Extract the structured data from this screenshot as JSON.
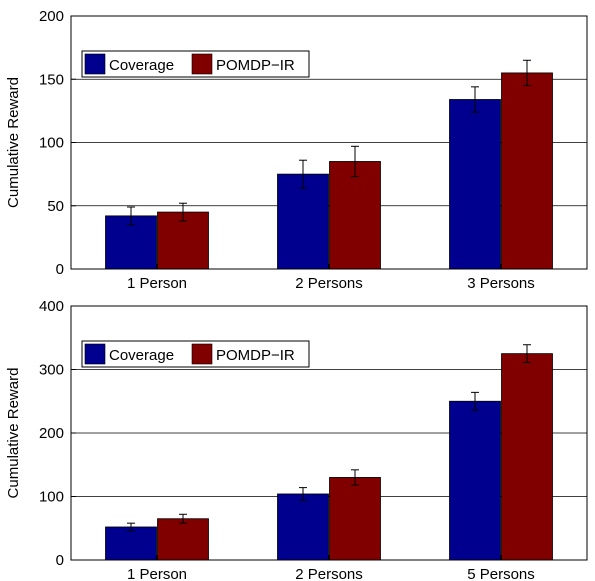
{
  "colors": {
    "coverage": "#00008f",
    "pomdp_ir": "#800000"
  },
  "chart_data": [
    {
      "type": "bar",
      "categories": [
        "1 Person",
        "2 Persons",
        "3 Persons"
      ],
      "series": [
        {
          "name": "Coverage",
          "values": [
            42,
            75,
            134
          ],
          "errors": [
            7,
            11,
            10
          ]
        },
        {
          "name": "POMDP−IR",
          "values": [
            45,
            85,
            155
          ],
          "errors": [
            7,
            12,
            10
          ]
        }
      ],
      "xlabel": "",
      "ylabel": "Cumulative Reward",
      "ylim": [
        0,
        200
      ],
      "yticks": [
        "0",
        "50",
        "100",
        "150",
        "200"
      ],
      "grid": true,
      "legend": "top-left"
    },
    {
      "type": "bar",
      "categories": [
        "1 Person",
        "2 Persons",
        "5 Persons"
      ],
      "series": [
        {
          "name": "Coverage",
          "values": [
            52,
            104,
            250
          ],
          "errors": [
            6,
            10,
            14
          ]
        },
        {
          "name": "POMDP−IR",
          "values": [
            65,
            130,
            325
          ],
          "errors": [
            7,
            12,
            14
          ]
        }
      ],
      "xlabel": "",
      "ylabel": "Cumulative Reward",
      "ylim": [
        0,
        400
      ],
      "yticks": [
        "0",
        "100",
        "200",
        "300",
        "400"
      ],
      "grid": true,
      "legend": "top-left"
    }
  ]
}
